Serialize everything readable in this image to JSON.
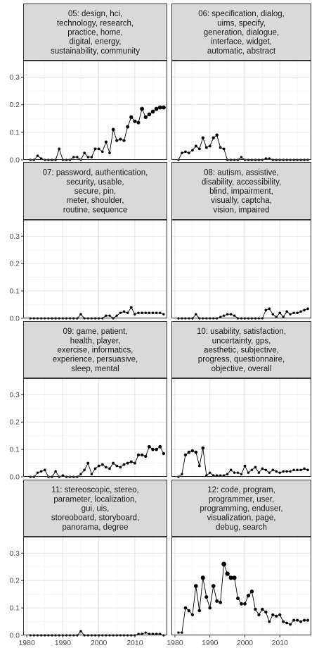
{
  "chart_data": {
    "type": "line",
    "layout": "facet-grid",
    "grid": true,
    "x_ticks": [
      1980,
      1990,
      2000,
      2010
    ],
    "y_ticks": [
      "0.0",
      "0.1",
      "0.2",
      "0.3"
    ],
    "xlim": [
      1979,
      2019
    ],
    "ylim": [
      0,
      0.36
    ],
    "x": [
      1981,
      1982,
      1983,
      1984,
      1985,
      1986,
      1987,
      1988,
      1989,
      1990,
      1991,
      1992,
      1993,
      1994,
      1995,
      1996,
      1997,
      1998,
      1999,
      2000,
      2001,
      2002,
      2003,
      2004,
      2005,
      2006,
      2007,
      2008,
      2009,
      2010,
      2011,
      2012,
      2013,
      2014,
      2015,
      2016,
      2017,
      2018
    ],
    "facets": [
      {
        "label_lines": [
          "05: design, hci,",
          "technology, research,",
          "practice, home,",
          "digital, energy,",
          "sustainability, community"
        ],
        "values": [
          0.0,
          0.0,
          0.015,
          0.005,
          0.0,
          0.0,
          0.0,
          0.0,
          0.04,
          0.0,
          0.0,
          0.0,
          0.01,
          0.01,
          0.0,
          0.025,
          0.01,
          0.01,
          0.04,
          0.04,
          0.03,
          0.065,
          0.025,
          0.11,
          0.07,
          0.075,
          0.07,
          0.12,
          0.155,
          0.14,
          0.135,
          0.185,
          0.155,
          0.165,
          0.175,
          0.185,
          0.19,
          0.19
        ]
      },
      {
        "label_lines": [
          "06: specification, dialog,",
          "uims, specify,",
          "generation, dialogue,",
          "interface, widget,",
          "automatic, abstract"
        ],
        "values": [
          0.0,
          0.025,
          0.03,
          0.025,
          0.035,
          0.05,
          0.04,
          0.08,
          0.045,
          0.05,
          0.08,
          0.09,
          0.045,
          0.04,
          0.0,
          0.0,
          0.0,
          0.0,
          0.01,
          0.0,
          0.0,
          0.0,
          0.0,
          0.0,
          0.0,
          0.005,
          0.005,
          0.0,
          0.0,
          0.0,
          0.0,
          0.0,
          0.0,
          0.0,
          0.0,
          0.0,
          0.0,
          0.0
        ]
      },
      {
        "label_lines": [
          "07: password, authentication,",
          "security, usable,",
          "secure, pin,",
          "meter, shoulder,",
          "routine, sequence"
        ],
        "values": [
          0.0,
          0.0,
          0.0,
          0.0,
          0.0,
          0.0,
          0.0,
          0.0,
          0.0,
          0.0,
          0.0,
          0.0,
          0.0,
          0.0,
          0.015,
          0.0,
          0.0,
          0.0,
          0.0,
          0.0,
          0.0,
          0.01,
          0.01,
          0.0,
          0.01,
          0.02,
          0.025,
          0.02,
          0.04,
          0.015,
          0.02,
          0.02,
          0.02,
          0.02,
          0.02,
          0.02,
          0.02,
          0.015
        ]
      },
      {
        "label_lines": [
          "08: autism, assistive,",
          "disability, accessibility,",
          "blind, impairment,",
          "visually, captcha,",
          "vision, impaired"
        ],
        "values": [
          0.0,
          0.0,
          0.0,
          0.0,
          0.0,
          0.015,
          0.0,
          0.0,
          0.0,
          0.0,
          0.0,
          0.0,
          0.005,
          0.01,
          0.015,
          0.015,
          0.01,
          0.0,
          0.0,
          0.0,
          0.0,
          0.0,
          0.0,
          0.0,
          0.0,
          0.03,
          0.035,
          0.015,
          0.005,
          0.02,
          0.005,
          0.025,
          0.015,
          0.02,
          0.02,
          0.025,
          0.03,
          0.035
        ]
      },
      {
        "label_lines": [
          "09: game, patient,",
          "health, player,",
          "exercise, informatics,",
          "experience, persuasive,",
          "sleep, mental"
        ],
        "values": [
          0.0,
          0.0,
          0.015,
          0.02,
          0.025,
          0.0,
          0.0,
          0.02,
          0.0,
          0.005,
          0.0,
          0.0,
          0.0,
          0.0,
          0.01,
          0.025,
          0.05,
          0.01,
          0.03,
          0.04,
          0.045,
          0.035,
          0.03,
          0.05,
          0.04,
          0.035,
          0.045,
          0.05,
          0.055,
          0.05,
          0.08,
          0.08,
          0.075,
          0.11,
          0.1,
          0.1,
          0.11,
          0.085
        ]
      },
      {
        "label_lines": [
          "10: usability, satisfaction,",
          "uncertainty, gps,",
          "aesthetic, subjective,",
          "progress, questionnaire,",
          "objective, overall"
        ],
        "values": [
          0.0,
          0.01,
          0.08,
          0.09,
          0.095,
          0.09,
          0.04,
          0.105,
          0.005,
          0.015,
          0.005,
          0.005,
          0.005,
          0.005,
          0.01,
          0.025,
          0.015,
          0.015,
          0.01,
          0.04,
          0.015,
          0.025,
          0.035,
          0.015,
          0.03,
          0.025,
          0.015,
          0.025,
          0.02,
          0.015,
          0.02,
          0.02,
          0.02,
          0.025,
          0.025,
          0.025,
          0.03,
          0.025
        ]
      },
      {
        "label_lines": [
          "11: stereoscopic, stereo,",
          "parameter, localization,",
          "gui, uis,",
          "storeoboard, storyboard,",
          "panorama, degree"
        ],
        "values": [
          0.0,
          0.0,
          0.0,
          0.0,
          0.0,
          0.0,
          0.0,
          0.0,
          0.0,
          0.0,
          0.0,
          0.0,
          0.0,
          0.0,
          0.015,
          0.0,
          0.0,
          0.0,
          0.0,
          0.0,
          0.0,
          0.0,
          0.0,
          0.0,
          0.0,
          0.0,
          0.0,
          0.0,
          0.0,
          0.0,
          0.005,
          0.005,
          0.01,
          0.005,
          0.005,
          0.005,
          0.005,
          0.0
        ]
      },
      {
        "label_lines": [
          "12: code, program,",
          "programmer, user,",
          "programming, enduser,",
          "visualization, page,",
          "debug, search"
        ],
        "values": [
          0.01,
          0.01,
          0.1,
          0.09,
          0.075,
          0.18,
          0.09,
          0.21,
          0.14,
          0.1,
          0.18,
          0.125,
          0.12,
          0.26,
          0.225,
          0.21,
          0.21,
          0.135,
          0.115,
          0.115,
          0.145,
          0.16,
          0.095,
          0.075,
          0.095,
          0.085,
          0.05,
          0.075,
          0.07,
          0.075,
          0.05,
          0.045,
          0.04,
          0.055,
          0.055,
          0.05,
          0.055,
          0.055
        ]
      }
    ]
  }
}
